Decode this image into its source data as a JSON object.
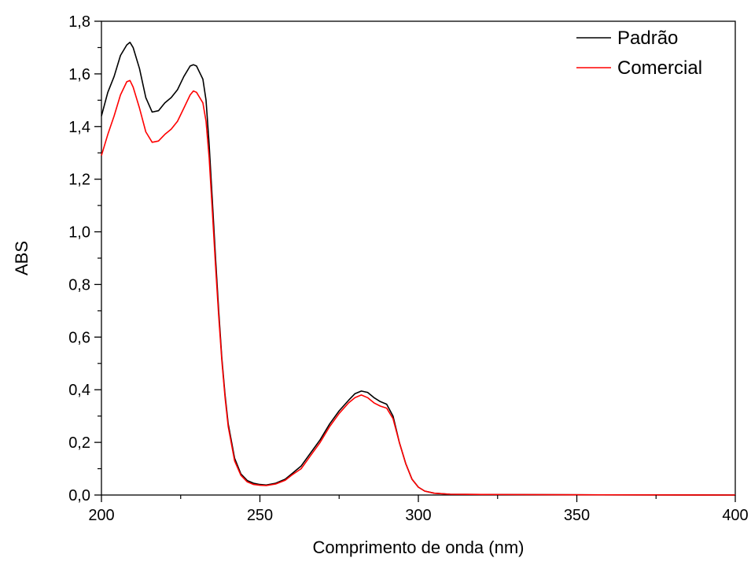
{
  "chart_data": {
    "type": "line",
    "title": "",
    "xlabel": "Comprimento de onda (nm)",
    "ylabel": "ABS",
    "xlim": [
      200,
      400
    ],
    "ylim": [
      0.0,
      1.8
    ],
    "x_ticks": [
      200,
      250,
      300,
      350,
      400
    ],
    "x_tick_labels": [
      "200",
      "250",
      "300",
      "350",
      "400"
    ],
    "y_ticks": [
      0.0,
      0.2,
      0.4,
      0.6,
      0.8,
      1.0,
      1.2,
      1.4,
      1.6,
      1.8
    ],
    "y_tick_labels": [
      "0,0",
      "0,2",
      "0,4",
      "0,6",
      "0,8",
      "1,0",
      "1,2",
      "1,4",
      "1,6",
      "1,8"
    ],
    "grid": false,
    "legend_position": "top-right",
    "series": [
      {
        "name": "Padrão",
        "color": "#000000",
        "points": [
          [
            200,
            1.44
          ],
          [
            202,
            1.53
          ],
          [
            204,
            1.59
          ],
          [
            206,
            1.67
          ],
          [
            208,
            1.71
          ],
          [
            209,
            1.72
          ],
          [
            210,
            1.7
          ],
          [
            212,
            1.62
          ],
          [
            214,
            1.51
          ],
          [
            216,
            1.455
          ],
          [
            218,
            1.46
          ],
          [
            220,
            1.49
          ],
          [
            222,
            1.51
          ],
          [
            224,
            1.54
          ],
          [
            226,
            1.59
          ],
          [
            228,
            1.63
          ],
          [
            229,
            1.635
          ],
          [
            230,
            1.63
          ],
          [
            232,
            1.58
          ],
          [
            233,
            1.5
          ],
          [
            234,
            1.33
          ],
          [
            235,
            1.12
          ],
          [
            236,
            0.9
          ],
          [
            237,
            0.7
          ],
          [
            238,
            0.52
          ],
          [
            239,
            0.38
          ],
          [
            240,
            0.27
          ],
          [
            242,
            0.14
          ],
          [
            244,
            0.08
          ],
          [
            246,
            0.055
          ],
          [
            248,
            0.045
          ],
          [
            250,
            0.04
          ],
          [
            252,
            0.038
          ],
          [
            255,
            0.045
          ],
          [
            258,
            0.06
          ],
          [
            260,
            0.08
          ],
          [
            263,
            0.11
          ],
          [
            266,
            0.16
          ],
          [
            269,
            0.21
          ],
          [
            272,
            0.27
          ],
          [
            275,
            0.32
          ],
          [
            278,
            0.36
          ],
          [
            280,
            0.385
          ],
          [
            282,
            0.395
          ],
          [
            284,
            0.39
          ],
          [
            286,
            0.37
          ],
          [
            288,
            0.355
          ],
          [
            290,
            0.345
          ],
          [
            292,
            0.3
          ],
          [
            294,
            0.2
          ],
          [
            296,
            0.12
          ],
          [
            298,
            0.06
          ],
          [
            300,
            0.03
          ],
          [
            302,
            0.015
          ],
          [
            305,
            0.007
          ],
          [
            310,
            0.003
          ],
          [
            320,
            0.002
          ],
          [
            350,
            0.001
          ],
          [
            400,
            0.0
          ]
        ]
      },
      {
        "name": "Comercial",
        "color": "#ff0000",
        "points": [
          [
            200,
            1.29
          ],
          [
            202,
            1.37
          ],
          [
            204,
            1.44
          ],
          [
            206,
            1.52
          ],
          [
            208,
            1.57
          ],
          [
            209,
            1.575
          ],
          [
            210,
            1.55
          ],
          [
            212,
            1.47
          ],
          [
            214,
            1.38
          ],
          [
            216,
            1.34
          ],
          [
            218,
            1.345
          ],
          [
            220,
            1.37
          ],
          [
            222,
            1.39
          ],
          [
            224,
            1.42
          ],
          [
            226,
            1.47
          ],
          [
            228,
            1.52
          ],
          [
            229,
            1.535
          ],
          [
            230,
            1.53
          ],
          [
            232,
            1.49
          ],
          [
            233,
            1.42
          ],
          [
            234,
            1.28
          ],
          [
            235,
            1.08
          ],
          [
            236,
            0.87
          ],
          [
            237,
            0.68
          ],
          [
            238,
            0.51
          ],
          [
            239,
            0.37
          ],
          [
            240,
            0.26
          ],
          [
            242,
            0.13
          ],
          [
            244,
            0.075
          ],
          [
            246,
            0.05
          ],
          [
            248,
            0.04
          ],
          [
            250,
            0.037
          ],
          [
            252,
            0.036
          ],
          [
            255,
            0.042
          ],
          [
            258,
            0.056
          ],
          [
            260,
            0.075
          ],
          [
            263,
            0.1
          ],
          [
            266,
            0.15
          ],
          [
            269,
            0.2
          ],
          [
            272,
            0.26
          ],
          [
            275,
            0.31
          ],
          [
            278,
            0.35
          ],
          [
            280,
            0.37
          ],
          [
            282,
            0.38
          ],
          [
            284,
            0.37
          ],
          [
            286,
            0.35
          ],
          [
            288,
            0.338
          ],
          [
            290,
            0.33
          ],
          [
            292,
            0.29
          ],
          [
            294,
            0.2
          ],
          [
            296,
            0.12
          ],
          [
            298,
            0.06
          ],
          [
            300,
            0.03
          ],
          [
            302,
            0.015
          ],
          [
            305,
            0.007
          ],
          [
            310,
            0.003
          ],
          [
            320,
            0.002
          ],
          [
            350,
            0.001
          ],
          [
            400,
            0.0
          ]
        ]
      }
    ]
  }
}
